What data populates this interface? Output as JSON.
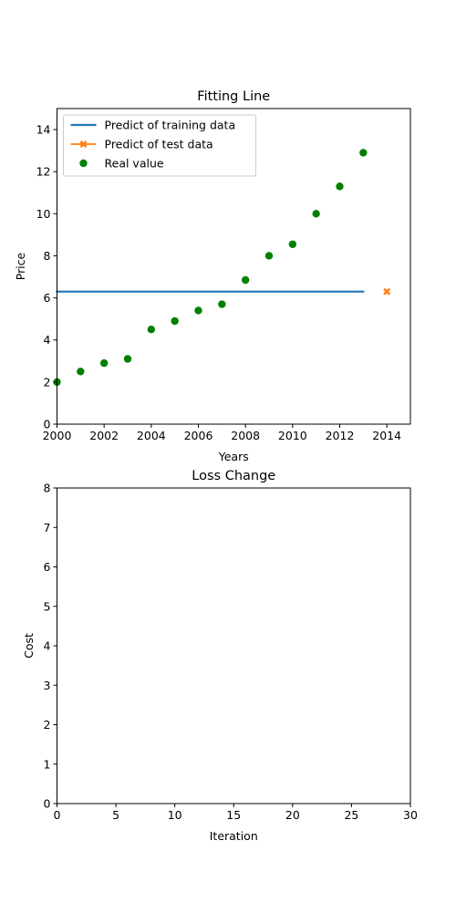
{
  "chart_data": [
    {
      "type": "scatter",
      "title": "Fitting Line",
      "xlabel": "Years",
      "ylabel": "Price",
      "xlim": [
        2000,
        2015
      ],
      "ylim": [
        0,
        15
      ],
      "xticks": [
        "2000",
        "2002",
        "2004",
        "2006",
        "2008",
        "2010",
        "2012",
        "2014"
      ],
      "yticks": [
        "0",
        "2",
        "4",
        "6",
        "8",
        "10",
        "12",
        "14"
      ],
      "grid": false,
      "legend_position": "top-left",
      "series": [
        {
          "name": "Predict of training data",
          "kind": "line",
          "color": "#1f77b4",
          "x": [
            2000,
            2013
          ],
          "y": [
            6.3,
            6.3
          ]
        },
        {
          "name": "Predict of test data",
          "kind": "marker-x",
          "color": "#ff7f0e",
          "x": [
            2014
          ],
          "y": [
            6.3
          ]
        },
        {
          "name": "Real value",
          "kind": "scatter",
          "color": "#008000",
          "x": [
            2000,
            2001,
            2002,
            2003,
            2004,
            2005,
            2006,
            2007,
            2008,
            2009,
            2010,
            2011,
            2012,
            2013
          ],
          "y": [
            2.0,
            2.5,
            2.9,
            3.1,
            4.5,
            4.9,
            5.4,
            5.7,
            6.85,
            8.0,
            8.55,
            10.0,
            11.3,
            12.9
          ]
        }
      ]
    },
    {
      "type": "line",
      "title": "Loss Change",
      "xlabel": "Iteration",
      "ylabel": "Cost",
      "xlim": [
        0,
        30
      ],
      "ylim": [
        0,
        8
      ],
      "xticks": [
        "0",
        "5",
        "10",
        "15",
        "20",
        "25",
        "30"
      ],
      "yticks": [
        "0",
        "1",
        "2",
        "3",
        "4",
        "5",
        "6",
        "7",
        "8"
      ],
      "grid": false,
      "series": []
    }
  ]
}
